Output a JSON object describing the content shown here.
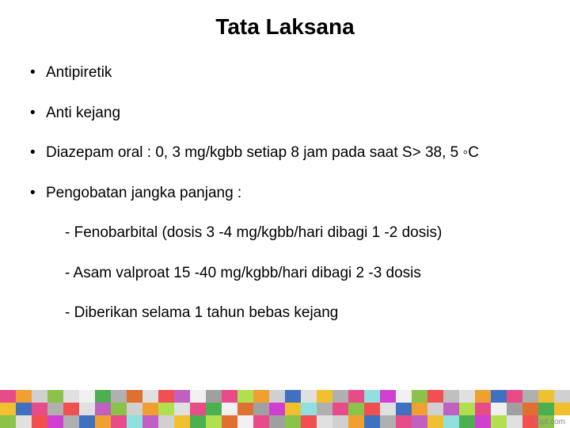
{
  "title": "Tata Laksana",
  "bullets": [
    {
      "text": "Antipiretik"
    },
    {
      "text": "Anti kejang"
    },
    {
      "text": "Diazepam oral : 0, 3 mg/kgbb setiap 8 jam pada saat S> 38, 5 ◦C"
    },
    {
      "text": "Pengobatan jangka panjang :",
      "sub": [
        "- Fenobarbital (dosis 3 -4 mg/kgbb/hari dibagi 1 -2 dosis)",
        "- Asam valproat 15 -40 mg/kgbb/hari dibagi 2 -3 dosis",
        "- Diberikan selama 1 tahun bebas kejang"
      ]
    }
  ],
  "credit": "fppt.com",
  "mosaic_colors": [
    "#e84c88",
    "#f0a030",
    "#d0d0d0",
    "#8bc24a",
    "#e0e0e0",
    "#f0f0f0",
    "#4cb050",
    "#b0b0b0",
    "#e07030",
    "#e0e0e0",
    "#f05050",
    "#c060c0",
    "#f0f0f0",
    "#a0a0a0",
    "#e84c88",
    "#b0e050",
    "#f0a030",
    "#d0d0d0",
    "#4070c0",
    "#e0e0e0",
    "#f0c030",
    "#b0b0b0",
    "#e84c88",
    "#90e0e0",
    "#d040d0",
    "#f0f0f0",
    "#8bc24a",
    "#f05050",
    "#c0c0c0",
    "#e0e0e0",
    "#f0a030",
    "#4070c0",
    "#e84c88",
    "#b0b0b0",
    "#f0c030",
    "#d0d0d0",
    "#f0c030",
    "#4070c0",
    "#e84c88",
    "#b0b0b0",
    "#f05050",
    "#e0e0e0",
    "#c060c0",
    "#8bc24a",
    "#d0d0d0",
    "#f0a030",
    "#b0e050",
    "#e0e0e0",
    "#e84c88",
    "#4cb050",
    "#f0f0f0",
    "#e07030",
    "#a0a0a0",
    "#d040d0",
    "#f0c030",
    "#90e0e0",
    "#b0b0b0",
    "#e84c88",
    "#8bc24a",
    "#f05050",
    "#e0e0e0",
    "#4070c0",
    "#f0a030",
    "#d0d0d0",
    "#c060c0",
    "#b0e050",
    "#e84c88",
    "#f0f0f0",
    "#a0a0a0",
    "#e07030",
    "#4cb050",
    "#f0c030",
    "#8bc24a",
    "#e0e0e0",
    "#f05050",
    "#d040d0",
    "#b0b0b0",
    "#4070c0",
    "#f0a030",
    "#e84c88",
    "#90e0e0",
    "#c060c0",
    "#d0d0d0",
    "#f0c030",
    "#4cb050",
    "#b0e050",
    "#e07030",
    "#f0f0f0",
    "#e84c88",
    "#a0a0a0",
    "#8bc24a",
    "#f05050",
    "#e0e0e0",
    "#d0d0d0",
    "#f0a030",
    "#4070c0",
    "#b0b0b0",
    "#e84c88",
    "#c060c0",
    "#f0c030",
    "#90e0e0",
    "#4cb050",
    "#d040d0",
    "#b0e050",
    "#e0e0e0",
    "#f05050",
    "#8bc24a",
    "#ffffff"
  ]
}
